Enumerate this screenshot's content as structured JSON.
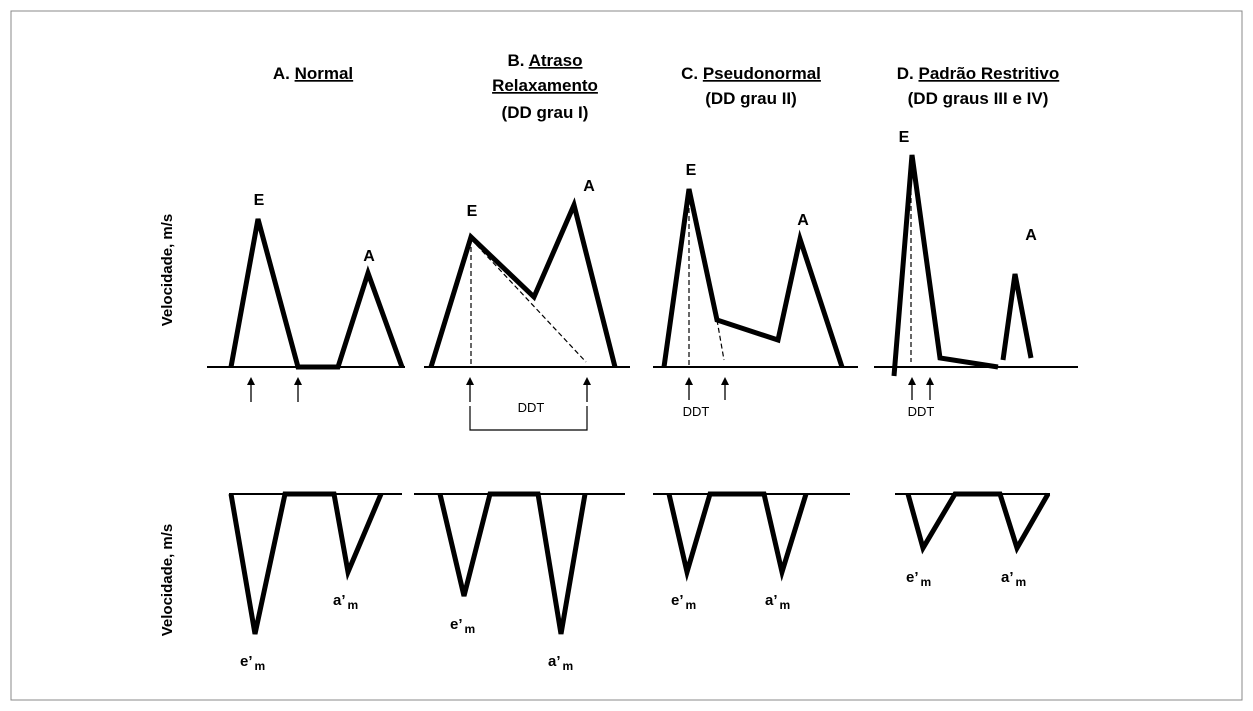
{
  "y_axis_label_top": "Velocidade, m/s",
  "y_axis_label_bottom": "Velocidade, m/s",
  "panels": [
    {
      "id": "A",
      "title_prefix": "A. ",
      "title_underlined": "Normal",
      "title_line2": "",
      "title_line3": "",
      "peak_E": "E",
      "peak_A": "A",
      "ddt_label": "",
      "e_label": "e’",
      "e_sub": "m",
      "a_label": "a’",
      "a_sub": "m"
    },
    {
      "id": "B",
      "title_prefix": "B. ",
      "title_underlined": "Atraso",
      "title_line2": "Relaxamento",
      "title_line3": "(DD grau I)",
      "peak_E": "E",
      "peak_A": "A",
      "ddt_label": "DDT",
      "e_label": "e’",
      "e_sub": "m",
      "a_label": "a’",
      "a_sub": "m"
    },
    {
      "id": "C",
      "title_prefix": "C. ",
      "title_underlined": "Pseudonormal",
      "title_line2": "(DD grau II)",
      "title_line3": "",
      "peak_E": "E",
      "peak_A": "A",
      "ddt_label": "DDT",
      "e_label": "e’",
      "e_sub": "m",
      "a_label": "a’",
      "a_sub": "m"
    },
    {
      "id": "D",
      "title_prefix": "D. ",
      "title_underlined": "Padrão Restritivo",
      "title_line2": "(DD graus III e IV)",
      "title_line3": "",
      "peak_E": "E",
      "peak_A": "A",
      "ddt_label": "DDT",
      "e_label": "e’",
      "e_sub": "m",
      "a_label": "a’",
      "a_sub": "m"
    }
  ]
}
